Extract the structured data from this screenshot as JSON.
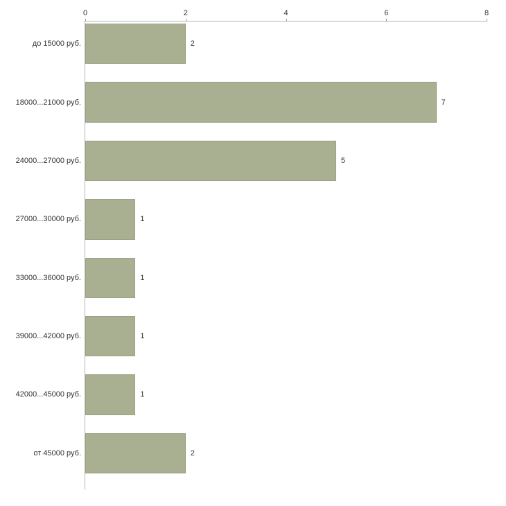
{
  "chart_data": {
    "type": "bar",
    "orientation": "horizontal",
    "title": "",
    "xlabel": "",
    "ylabel": "",
    "categories": [
      "до 15000 руб.",
      "18000...21000 руб.",
      "24000...27000 руб.",
      "27000...30000 руб.",
      "33000...36000 руб.",
      "39000...42000 руб.",
      "42000...45000 руб.",
      "от 45000 руб."
    ],
    "values": [
      2,
      7,
      5,
      1,
      1,
      1,
      1,
      2
    ],
    "x_ticks": [
      0,
      2,
      4,
      6,
      8
    ],
    "xlim": [
      0,
      8
    ],
    "grid": false,
    "legend": null,
    "colors": {
      "bar_fill": "#a9b091",
      "bar_border": "#9aa184",
      "axis_line": "#b3b3b3",
      "text": "#333333",
      "background": "#ffffff"
    }
  }
}
